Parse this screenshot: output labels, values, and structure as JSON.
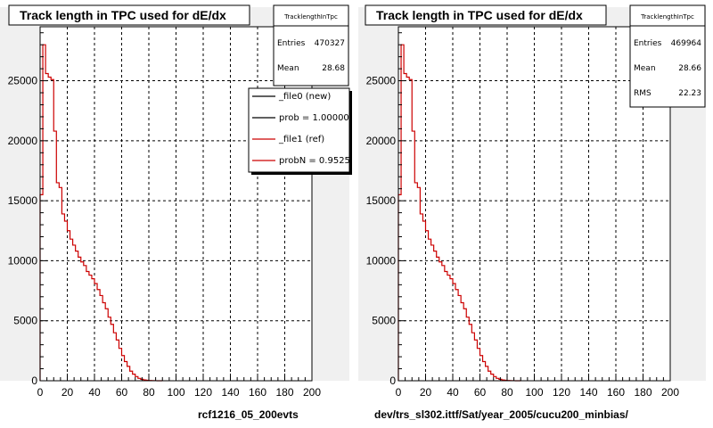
{
  "chart_data": [
    {
      "type": "histogram",
      "title": "Track length in TPC used for dE/dx",
      "xlabel": "rcf1216_05_200evts",
      "ylabel": "",
      "xlim": [
        0,
        200
      ],
      "ylim": [
        0,
        29500
      ],
      "xticks": [
        0,
        20,
        40,
        60,
        80,
        100,
        120,
        140,
        160,
        180,
        200
      ],
      "yticks": [
        0,
        5000,
        10000,
        15000,
        20000,
        25000
      ],
      "grid": true,
      "bin_width": 2,
      "stats": {
        "name": "TracklengthInTpc",
        "rows": [
          {
            "label": "Entries",
            "value": "470327"
          },
          {
            "label": "Mean",
            "value": "28.68"
          }
        ]
      },
      "legend": {
        "placement": "top-right",
        "entries": [
          {
            "label": "_file0 (new)",
            "color": "#000000"
          },
          {
            "label": "prob = 1.000000",
            "color": "#000000"
          },
          {
            "label": "_file1 (ref)",
            "color": "#cc0000"
          },
          {
            "label": "probN = 0.95253",
            "color": "#cc0000"
          }
        ]
      },
      "series": [
        {
          "color": "#cc0000",
          "values": [
            15500,
            28000,
            25600,
            25300,
            25100,
            20800,
            16500,
            16100,
            13900,
            13300,
            12500,
            11800,
            11300,
            10800,
            10300,
            9900,
            9600,
            9100,
            8800,
            8500,
            8100,
            7600,
            7100,
            6500,
            6000,
            5300,
            4700,
            4000,
            3400,
            2700,
            2100,
            1600,
            1200,
            800,
            550,
            350,
            200,
            120,
            70,
            40,
            20,
            10,
            5,
            2,
            1
          ]
        }
      ]
    },
    {
      "type": "histogram",
      "title": "Track length in TPC used for dE/dx",
      "xlabel": "dev/trs_sl302.ittf/Sat/year_2005/cucu200_minbias/",
      "ylabel": "",
      "xlim": [
        0,
        200
      ],
      "ylim": [
        0,
        29500
      ],
      "xticks": [
        0,
        20,
        40,
        60,
        80,
        100,
        120,
        140,
        160,
        180,
        200
      ],
      "yticks": [
        0,
        5000,
        10000,
        15000,
        20000,
        25000
      ],
      "grid": true,
      "bin_width": 2,
      "stats": {
        "name": "TracklengthInTpc",
        "rows": [
          {
            "label": "Entries",
            "value": "469964"
          },
          {
            "label": "Mean",
            "value": "28.66"
          },
          {
            "label": "RMS",
            "value": "22.23"
          }
        ]
      },
      "series": [
        {
          "color": "#cc0000",
          "values": [
            15500,
            28000,
            25600,
            25300,
            25100,
            20800,
            16500,
            16100,
            13900,
            13300,
            12500,
            11800,
            11300,
            10800,
            10300,
            9900,
            9600,
            9100,
            8800,
            8500,
            8100,
            7600,
            7100,
            6500,
            6000,
            5300,
            4700,
            4000,
            3400,
            2700,
            2100,
            1600,
            1200,
            800,
            550,
            350,
            200,
            120,
            70,
            40,
            20,
            10,
            5,
            2,
            1
          ]
        }
      ]
    }
  ]
}
